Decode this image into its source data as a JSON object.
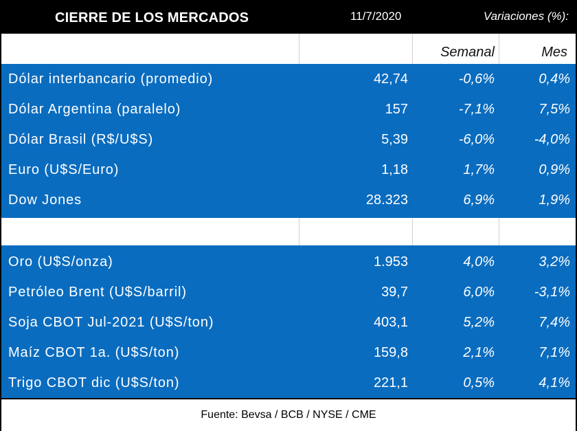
{
  "header": {
    "title": "CIERRE DE LOS MERCADOS",
    "date": "11/7/2020",
    "variations_label": "Variaciones (%):"
  },
  "columns": {
    "weekly": "Semanal",
    "monthly": "Mes"
  },
  "group1": [
    {
      "name": "Dólar interbancario (promedio)",
      "value": "42,74",
      "weekly": "-0,6%",
      "monthly": "0,4%"
    },
    {
      "name": "Dólar Argentina (paralelo)",
      "value": "157",
      "weekly": "-7,1%",
      "monthly": "7,5%"
    },
    {
      "name": "Dólar Brasil (R$/U$S)",
      "value": "5,39",
      "weekly": "-6,0%",
      "monthly": "-4,0%"
    },
    {
      "name": "Euro (U$S/Euro)",
      "value": "1,18",
      "weekly": "1,7%",
      "monthly": "0,9%"
    },
    {
      "name": "Dow Jones",
      "value": "28.323",
      "weekly": "6,9%",
      "monthly": "1,9%"
    }
  ],
  "group2": [
    {
      "name": "Oro (U$S/onza)",
      "value": "1.953",
      "weekly": "4,0%",
      "monthly": "3,2%"
    },
    {
      "name": "Petróleo Brent (U$S/barril)",
      "value": "39,7",
      "weekly": "6,0%",
      "monthly": "-3,1%"
    },
    {
      "name": "Soja CBOT Jul-2021 (U$S/ton)",
      "value": "403,1",
      "weekly": "5,2%",
      "monthly": "7,4%"
    },
    {
      "name": "Maíz CBOT 1a. (U$S/ton)",
      "value": "159,8",
      "weekly": "2,1%",
      "monthly": "7,1%"
    },
    {
      "name": "Trigo CBOT dic (U$S/ton)",
      "value": "221,1",
      "weekly": "0,5%",
      "monthly": "4,1%"
    }
  ],
  "footer": {
    "source": "Fuente: Bevsa / BCB / NYSE / CME"
  },
  "colors": {
    "header_bg": "#000000",
    "row_bg": "#0a6cbf",
    "text_on_blue": "#ffffff"
  }
}
